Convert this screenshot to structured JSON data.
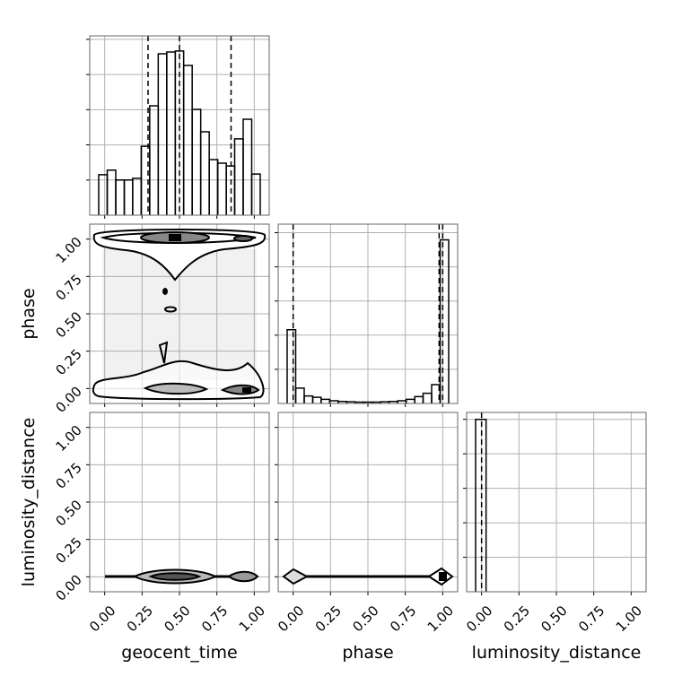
{
  "chart_data": {
    "type": "corner",
    "parameters": [
      "geocent_time",
      "phase",
      "luminosity_distance"
    ],
    "lim": [
      -0.1,
      1.1
    ],
    "ticks": [
      {
        "value": 0,
        "label": "0.00"
      },
      {
        "value": 0.25,
        "label": "0.25"
      },
      {
        "value": 0.5,
        "label": "0.50"
      },
      {
        "value": 0.75,
        "label": "0.75"
      },
      {
        "value": 1,
        "label": "1.00"
      }
    ],
    "grid": true,
    "color": "#000000",
    "histograms": [
      {
        "bins": [
          -0.04,
          0.017,
          0.074,
          0.131,
          0.187,
          0.244,
          0.301,
          0.358,
          0.415,
          0.472,
          0.528,
          0.585,
          0.642,
          0.699,
          0.756,
          0.813,
          0.869,
          0.926,
          0.983,
          1.04
        ],
        "counts": [
          1.15,
          1.28,
          1.0,
          1.0,
          1.05,
          1.96,
          3.11,
          4.59,
          4.64,
          4.67,
          4.26,
          3.01,
          2.37,
          1.58,
          1.48,
          1.4,
          2.17,
          2.73,
          1.17
        ],
        "ylim": [
          0,
          5.1
        ],
        "yticks": [
          1,
          2,
          3,
          4,
          5
        ],
        "quantiles": [
          0.29,
          0.5,
          0.845
        ]
      },
      {
        "bins": [
          -0.04,
          0.017,
          0.074,
          0.131,
          0.187,
          0.244,
          0.301,
          0.358,
          0.415,
          0.472,
          0.528,
          0.585,
          0.642,
          0.699,
          0.756,
          0.813,
          0.869,
          0.926,
          0.983,
          1.04
        ],
        "counts": [
          2.16,
          0.45,
          0.22,
          0.18,
          0.12,
          0.08,
          0.06,
          0.05,
          0.04,
          0.04,
          0.04,
          0.05,
          0.06,
          0.08,
          0.12,
          0.2,
          0.3,
          0.55,
          4.79
        ],
        "ylim": [
          0,
          5.25
        ],
        "yticks": [
          1,
          2,
          3,
          4,
          5
        ],
        "quantiles": [
          0.0,
          0.976,
          1.0
        ]
      },
      {
        "bins": [
          -0.04,
          0.03
        ],
        "counts": [
          5.0
        ],
        "ylim": [
          0,
          5.2
        ],
        "yticks": [
          1,
          2,
          3,
          4,
          5
        ],
        "quantiles": [
          0.0
        ]
      }
    ]
  }
}
